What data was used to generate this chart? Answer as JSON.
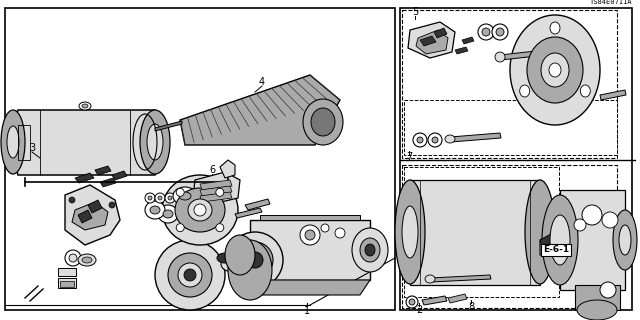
{
  "bg_color": "#ffffff",
  "diagram_code": "TS84E0711A",
  "label_e61": "E-6-1",
  "lc": "#000000",
  "gg": "#aaaaaa",
  "dg": "#333333",
  "mg": "#777777",
  "lg": "#dddddd",
  "wh": "#ffffff"
}
